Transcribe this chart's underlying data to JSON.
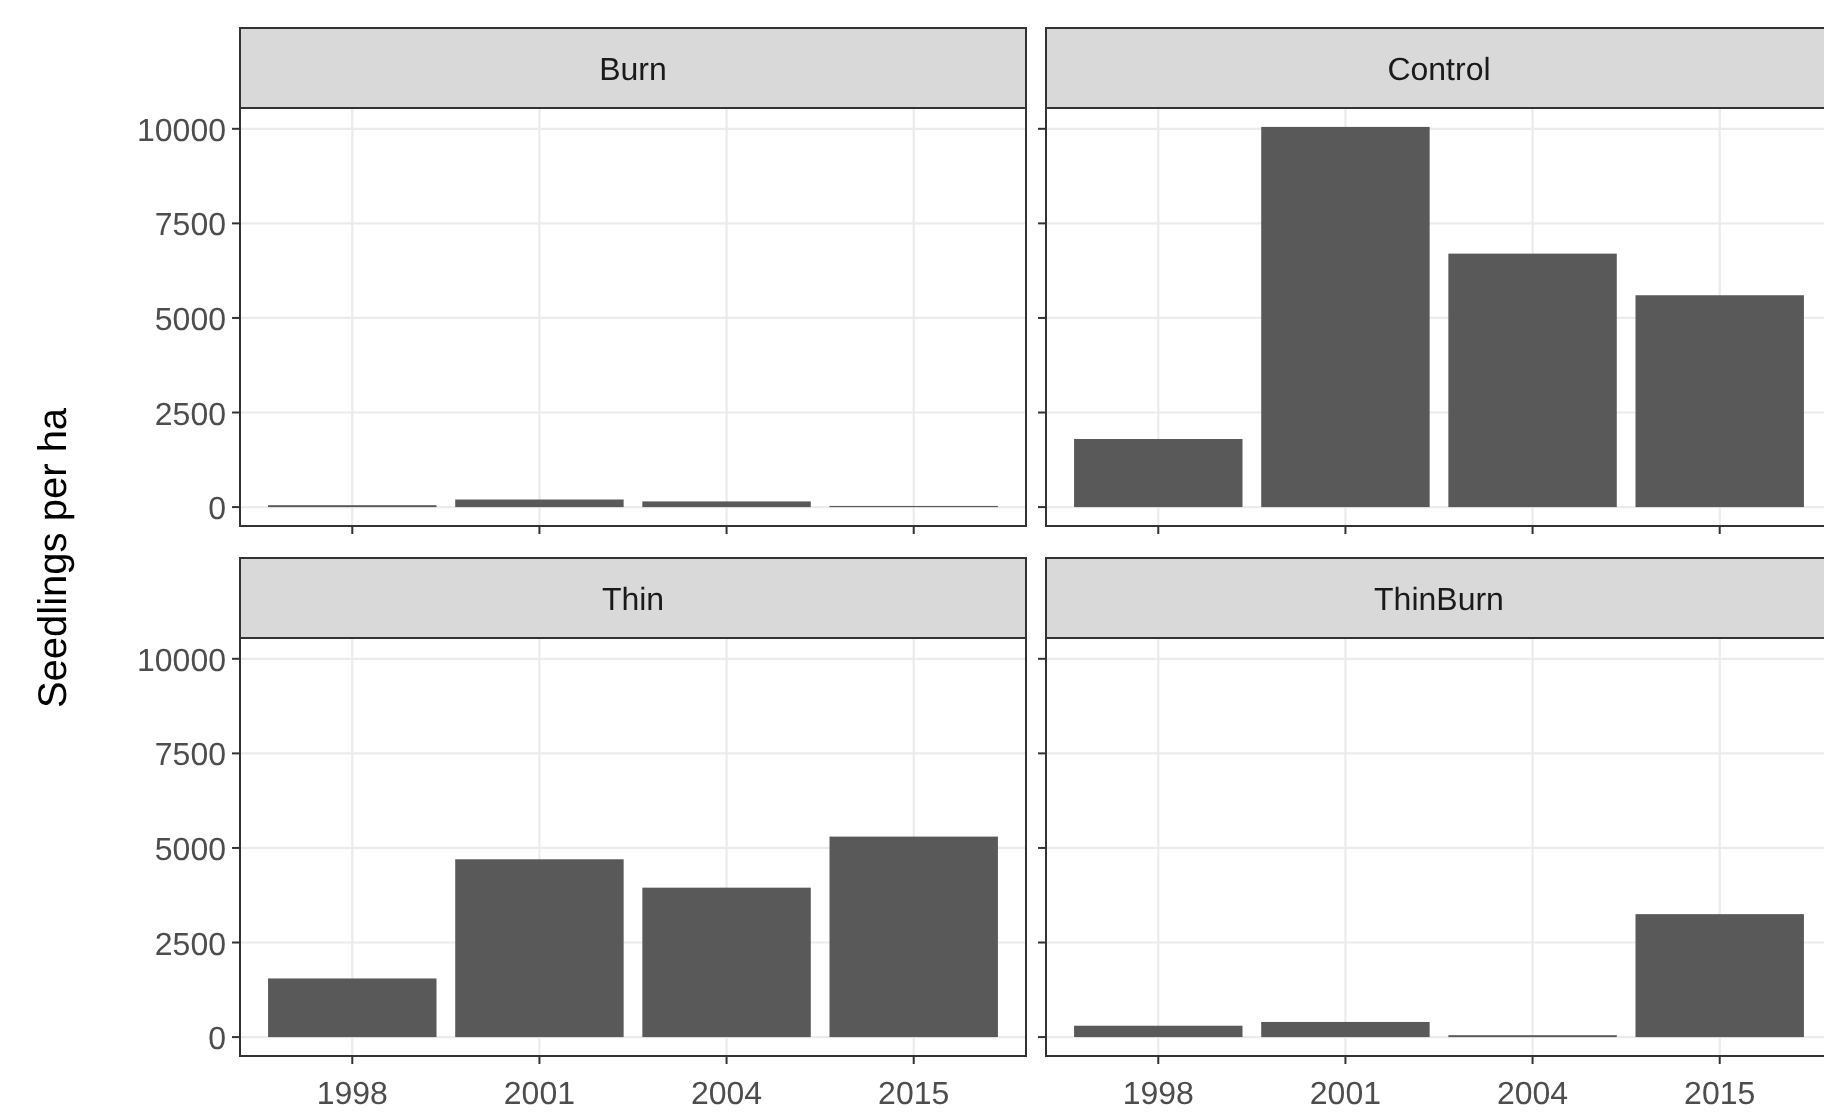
{
  "chart_data": [
    {
      "type": "bar",
      "title": "Burn",
      "ylabel": "Seedlings per ha",
      "categories": [
        "1998",
        "2001",
        "2004",
        "2015"
      ],
      "values": [
        50,
        200,
        150,
        30
      ],
      "color": "#595959",
      "ylim": [
        -500,
        10550
      ],
      "yticks": [
        0,
        2500,
        5000,
        7500,
        10000
      ],
      "grid": true,
      "tick_labels": "y"
    },
    {
      "type": "bar",
      "title": "Control",
      "categories": [
        "1998",
        "2001",
        "2004",
        "2015"
      ],
      "values": [
        1800,
        10050,
        6700,
        5600
      ],
      "color": "#595959",
      "ylim": [
        -500,
        10550
      ],
      "yticks": [
        0,
        2500,
        5000,
        7500,
        10000
      ],
      "grid": true,
      "tick_labels": false
    },
    {
      "type": "bar",
      "title": "Thin",
      "categories": [
        "1998",
        "2001",
        "2004",
        "2015"
      ],
      "values": [
        1550,
        4700,
        3950,
        5300
      ],
      "color": "#595959",
      "ylim": [
        -500,
        10550
      ],
      "yticks": [
        0,
        2500,
        5000,
        7500,
        10000
      ],
      "grid": true
    },
    {
      "type": "bar",
      "title": "ThinBurn",
      "categories": [
        "1998",
        "2001",
        "2004",
        "2015"
      ],
      "values": [
        300,
        400,
        50,
        3250
      ],
      "color": "#595959",
      "ylim": [
        -500,
        10550
      ],
      "yticks": [
        0,
        2500,
        5000,
        7500,
        10000
      ],
      "grid": true,
      "tick_labels": "x"
    }
  ]
}
